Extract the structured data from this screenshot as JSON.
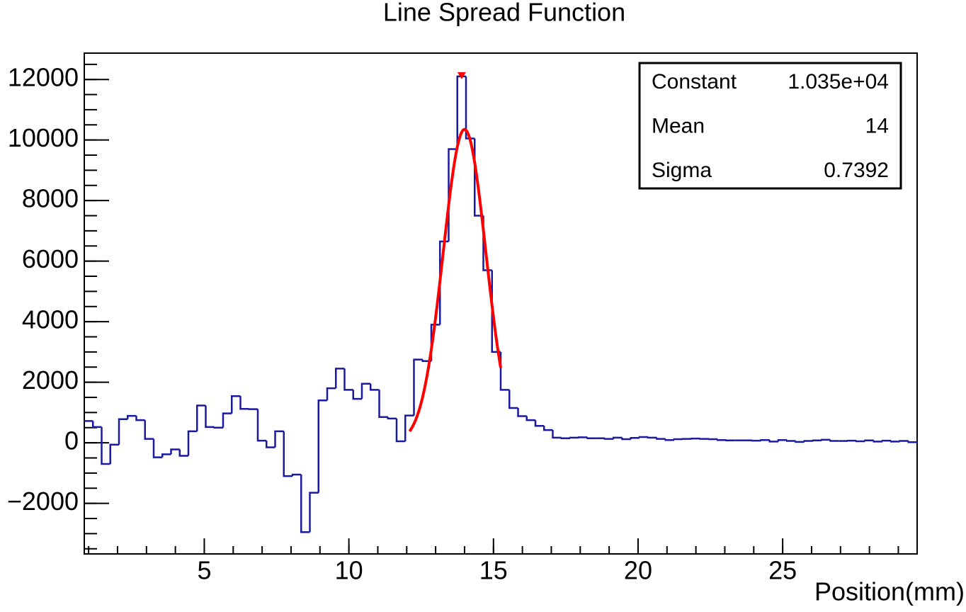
{
  "chart_data": {
    "type": "histogram",
    "title": "Line Spread Function",
    "x_label": "Position(mm)",
    "bins": [
      0.85,
      1.15,
      1.45,
      1.75,
      2.05,
      2.35,
      2.65,
      2.95,
      3.25,
      3.55,
      3.85,
      4.15,
      4.45,
      4.75,
      5.05,
      5.35,
      5.65,
      5.95,
      6.25,
      6.55,
      6.85,
      7.15,
      7.45,
      7.75,
      8.05,
      8.35,
      8.65,
      8.95,
      9.25,
      9.55,
      9.85,
      10.15,
      10.45,
      10.75,
      11.05,
      11.35,
      11.65,
      11.95,
      12.25,
      12.55,
      12.85,
      13.15,
      13.45,
      13.75,
      14.05,
      14.35,
      14.65,
      14.95,
      15.25,
      15.55,
      15.85,
      16.15,
      16.45,
      16.75,
      17.05,
      17.35,
      17.65,
      17.95,
      18.25,
      18.55,
      18.85,
      19.15,
      19.45,
      19.75,
      20.05,
      20.35,
      20.65,
      20.95,
      21.25,
      21.55,
      21.85,
      22.15,
      22.45,
      22.75,
      23.05,
      23.35,
      23.65,
      23.95,
      24.25,
      24.55,
      24.85,
      25.15,
      25.45,
      25.75,
      26.05,
      26.35,
      26.65,
      26.95,
      27.25,
      27.55,
      27.85,
      28.15,
      28.45,
      28.75,
      29.05,
      29.35,
      29.65
    ],
    "values": [
      720,
      520,
      -700,
      -60,
      780,
      890,
      750,
      130,
      -480,
      -380,
      -220,
      -430,
      380,
      1230,
      520,
      500,
      970,
      1540,
      1120,
      1110,
      70,
      -150,
      380,
      -1100,
      -1050,
      -2950,
      -1650,
      1400,
      1800,
      2450,
      1750,
      1450,
      1950,
      1750,
      850,
      800,
      50,
      900,
      2750,
      2700,
      3900,
      6650,
      9700,
      12100,
      10050,
      7500,
      5700,
      3000,
      1750,
      1150,
      880,
      750,
      560,
      420,
      170,
      150,
      170,
      180,
      150,
      150,
      130,
      170,
      120,
      160,
      190,
      170,
      130,
      90,
      120,
      130,
      140,
      130,
      120,
      90,
      80,
      80,
      80,
      70,
      90,
      40,
      90,
      60,
      30,
      60,
      80,
      100,
      60,
      60,
      70,
      50,
      80,
      40,
      70,
      40,
      60,
      20
    ],
    "color": "#1a1aa0",
    "xlim": [
      0.85,
      29.65
    ],
    "xticks": [
      5,
      10,
      15,
      20,
      25
    ],
    "ylim": [
      -3670,
      12870
    ],
    "yticks": [
      {
        "value": -2000,
        "label": "−2000"
      },
      0,
      2000,
      4000,
      6000,
      8000,
      10000,
      12000
    ],
    "fit": {
      "color": "#ff0000",
      "xrange": [
        12.1,
        15.25
      ],
      "constant": {
        "value": 10350,
        "label": "1.035e+04"
      },
      "mean": 14,
      "sigma": 0.7392
    },
    "stats": {
      "rows": [
        [
          "Constant",
          "1.035e+04"
        ],
        [
          "Mean",
          "14"
        ],
        [
          "Sigma",
          "0.7392"
        ]
      ]
    }
  }
}
